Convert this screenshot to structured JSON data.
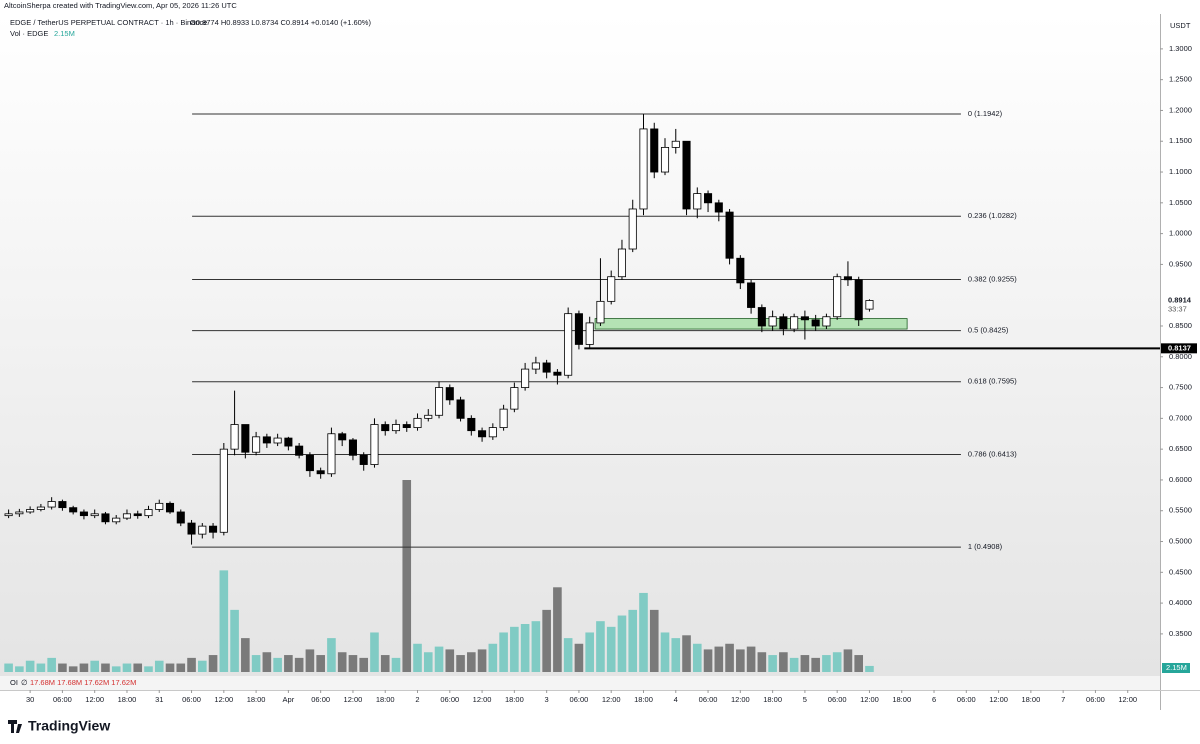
{
  "header": {
    "watermark": "AltcoinSherpa created with TradingView.com, Apr 05, 2026 11:26 UTC",
    "symbol": "EDGE / TetherUS PERPETUAL CONTRACT · 1h · Binance",
    "ohlc": "O0.8774 H0.8933 L0.8734 C0.8914 +0.0140 (+1.60%)",
    "volume_title": "Vol · EDGE",
    "volume_label": "2.15M"
  },
  "oi_row": {
    "title": "OI",
    "symbol": "∅",
    "values": "17.68M 17.68M 17.62M 17.62M"
  },
  "footer": {
    "logo": "TradingView"
  },
  "chart_data": {
    "type": "candlestick",
    "currency": "USDT",
    "x": [
      -4,
      -2,
      0,
      2,
      4,
      6,
      8,
      10,
      12,
      14,
      16,
      18,
      20,
      22,
      24,
      26,
      28,
      30,
      32,
      34,
      36,
      38,
      40,
      42,
      44,
      46,
      48,
      50,
      52,
      54,
      56,
      58,
      60,
      62,
      64,
      66,
      68,
      70,
      72,
      74,
      76,
      78,
      80,
      82,
      84,
      86,
      88,
      90,
      92,
      94,
      96,
      98,
      100,
      102,
      104,
      106,
      108,
      110,
      112,
      114,
      116,
      118,
      120,
      122,
      124,
      126,
      128,
      130,
      132,
      134,
      136,
      138,
      140,
      142,
      144,
      146,
      148,
      150,
      152,
      154,
      156
    ],
    "open": [
      0.542,
      0.545,
      0.548,
      0.552,
      0.556,
      0.565,
      0.555,
      0.548,
      0.542,
      0.545,
      0.532,
      0.538,
      0.545,
      0.542,
      0.552,
      0.562,
      0.548,
      0.53,
      0.512,
      0.525,
      0.515,
      0.65,
      0.69,
      0.645,
      0.67,
      0.66,
      0.668,
      0.655,
      0.64,
      0.615,
      0.61,
      0.675,
      0.665,
      0.64,
      0.625,
      0.69,
      0.68,
      0.69,
      0.685,
      0.7,
      0.705,
      0.75,
      0.73,
      0.7,
      0.68,
      0.67,
      0.685,
      0.715,
      0.75,
      0.78,
      0.79,
      0.775,
      0.77,
      0.87,
      0.82,
      0.855,
      0.89,
      0.93,
      0.975,
      1.04,
      1.17,
      1.1,
      1.14,
      1.15,
      1.04,
      1.065,
      1.05,
      1.035,
      0.96,
      0.92,
      0.88,
      0.85,
      0.865,
      0.845,
      0.865,
      0.86,
      0.85,
      0.865,
      0.93,
      0.925,
      0.8774
    ],
    "high": [
      0.552,
      0.553,
      0.557,
      0.561,
      0.572,
      0.568,
      0.558,
      0.552,
      0.552,
      0.548,
      0.543,
      0.552,
      0.55,
      0.558,
      0.568,
      0.565,
      0.552,
      0.535,
      0.53,
      0.53,
      0.66,
      0.745,
      0.69,
      0.678,
      0.675,
      0.675,
      0.67,
      0.66,
      0.645,
      0.62,
      0.685,
      0.678,
      0.668,
      0.645,
      0.7,
      0.695,
      0.698,
      0.695,
      0.708,
      0.715,
      0.76,
      0.755,
      0.735,
      0.705,
      0.685,
      0.692,
      0.722,
      0.758,
      0.79,
      0.8,
      0.795,
      0.78,
      0.88,
      0.875,
      0.865,
      0.96,
      0.94,
      0.99,
      1.055,
      1.194,
      1.18,
      1.155,
      1.17,
      1.15,
      1.075,
      1.07,
      1.055,
      1.04,
      0.965,
      0.925,
      0.885,
      0.875,
      0.87,
      0.87,
      0.875,
      0.868,
      0.87,
      0.935,
      0.955,
      0.93,
      0.8933
    ],
    "low": [
      0.538,
      0.54,
      0.545,
      0.549,
      0.552,
      0.55,
      0.544,
      0.536,
      0.538,
      0.528,
      0.528,
      0.535,
      0.537,
      0.538,
      0.548,
      0.545,
      0.525,
      0.495,
      0.505,
      0.505,
      0.51,
      0.64,
      0.635,
      0.64,
      0.652,
      0.655,
      0.648,
      0.635,
      0.605,
      0.602,
      0.605,
      0.655,
      0.632,
      0.615,
      0.62,
      0.672,
      0.675,
      0.678,
      0.68,
      0.695,
      0.7,
      0.722,
      0.695,
      0.672,
      0.662,
      0.665,
      0.68,
      0.71,
      0.745,
      0.772,
      0.765,
      0.755,
      0.765,
      0.812,
      0.815,
      0.85,
      0.885,
      0.925,
      0.97,
      1.03,
      1.09,
      1.095,
      1.13,
      1.03,
      1.025,
      1.035,
      1.02,
      0.95,
      0.91,
      0.87,
      0.84,
      0.842,
      0.835,
      0.84,
      0.828,
      0.842,
      0.845,
      0.86,
      0.915,
      0.85,
      0.8734
    ],
    "close": [
      0.545,
      0.548,
      0.552,
      0.556,
      0.565,
      0.555,
      0.548,
      0.542,
      0.545,
      0.532,
      0.538,
      0.545,
      0.542,
      0.552,
      0.562,
      0.548,
      0.53,
      0.512,
      0.525,
      0.515,
      0.65,
      0.69,
      0.645,
      0.67,
      0.66,
      0.668,
      0.655,
      0.64,
      0.615,
      0.61,
      0.675,
      0.665,
      0.64,
      0.625,
      0.69,
      0.68,
      0.69,
      0.685,
      0.7,
      0.705,
      0.75,
      0.73,
      0.7,
      0.68,
      0.67,
      0.685,
      0.715,
      0.75,
      0.78,
      0.79,
      0.775,
      0.77,
      0.87,
      0.82,
      0.855,
      0.89,
      0.93,
      0.975,
      1.04,
      1.17,
      1.1,
      1.14,
      1.15,
      1.04,
      1.065,
      1.05,
      1.035,
      0.96,
      0.92,
      0.88,
      0.85,
      0.865,
      0.845,
      0.865,
      0.86,
      0.85,
      0.865,
      0.93,
      0.925,
      0.86,
      0.8914
    ],
    "volume": [
      3,
      2,
      4,
      3,
      5,
      3,
      2,
      3,
      4,
      3,
      2,
      3,
      3,
      2,
      4,
      3,
      3,
      5,
      4,
      6,
      36,
      22,
      12,
      6,
      7,
      5,
      6,
      5,
      8,
      6,
      12,
      7,
      6,
      5,
      14,
      6,
      5,
      68,
      10,
      7,
      9,
      8,
      6,
      7,
      8,
      10,
      14,
      16,
      17,
      18,
      22,
      30,
      12,
      10,
      14,
      18,
      16,
      20,
      22,
      28,
      22,
      14,
      12,
      13,
      10,
      8,
      9,
      10,
      8,
      9,
      7,
      6,
      7,
      5,
      6,
      5,
      6,
      7,
      8,
      6,
      2.15
    ],
    "up_color": "#ffffff",
    "down_color": "#000000",
    "volume_up_color": "#80cbc4",
    "volume_down_color": "#7a7a7a",
    "xlim": [
      -5.6,
      210
    ],
    "ylim": [
      0.28,
      1.355
    ],
    "xticks": [
      {
        "value": 0,
        "label": "30"
      },
      {
        "value": 6,
        "label": "06:00"
      },
      {
        "value": 12,
        "label": "12:00"
      },
      {
        "value": 18,
        "label": "18:00"
      },
      {
        "value": 24,
        "label": "31"
      },
      {
        "value": 30,
        "label": "06:00"
      },
      {
        "value": 36,
        "label": "12:00"
      },
      {
        "value": 42,
        "label": "18:00"
      },
      {
        "value": 48,
        "label": "Apr"
      },
      {
        "value": 54,
        "label": "06:00"
      },
      {
        "value": 60,
        "label": "12:00"
      },
      {
        "value": 66,
        "label": "18:00"
      },
      {
        "value": 72,
        "label": "2"
      },
      {
        "value": 78,
        "label": "06:00"
      },
      {
        "value": 84,
        "label": "12:00"
      },
      {
        "value": 90,
        "label": "18:00"
      },
      {
        "value": 96,
        "label": "3"
      },
      {
        "value": 102,
        "label": "06:00"
      },
      {
        "value": 108,
        "label": "12:00"
      },
      {
        "value": 114,
        "label": "18:00"
      },
      {
        "value": 120,
        "label": "4"
      },
      {
        "value": 126,
        "label": "06:00"
      },
      {
        "value": 132,
        "label": "12:00"
      },
      {
        "value": 138,
        "label": "18:00"
      },
      {
        "value": 144,
        "label": "5"
      },
      {
        "value": 150,
        "label": "06:00"
      },
      {
        "value": 156,
        "label": "12:00"
      },
      {
        "value": 162,
        "label": "18:00"
      },
      {
        "value": 168,
        "label": "6"
      },
      {
        "value": 174,
        "label": "06:00"
      },
      {
        "value": 180,
        "label": "12:00"
      },
      {
        "value": 186,
        "label": "18:00"
      },
      {
        "value": 192,
        "label": "7"
      },
      {
        "value": 198,
        "label": "06:00"
      },
      {
        "value": 204,
        "label": "12:00"
      }
    ],
    "yticks": [
      {
        "value": 1.3,
        "label": "1.3000"
      },
      {
        "value": 1.25,
        "label": "1.2500"
      },
      {
        "value": 1.2,
        "label": "1.2000"
      },
      {
        "value": 1.15,
        "label": "1.1500"
      },
      {
        "value": 1.1,
        "label": "1.1000"
      },
      {
        "value": 1.05,
        "label": "1.0500"
      },
      {
        "value": 1.0,
        "label": "1.0000"
      },
      {
        "value": 0.95,
        "label": "0.9500"
      },
      {
        "value": 0.85,
        "label": "0.8500"
      },
      {
        "value": 0.8,
        "label": "0.8000"
      },
      {
        "value": 0.75,
        "label": "0.7500"
      },
      {
        "value": 0.7,
        "label": "0.7000"
      },
      {
        "value": 0.65,
        "label": "0.6500"
      },
      {
        "value": 0.6,
        "label": "0.6000"
      },
      {
        "value": 0.55,
        "label": "0.5500"
      },
      {
        "value": 0.5,
        "label": "0.5000"
      },
      {
        "value": 0.45,
        "label": "0.4500"
      },
      {
        "value": 0.4,
        "label": "0.4000"
      },
      {
        "value": 0.35,
        "label": "0.3500"
      }
    ],
    "fib_levels": [
      {
        "value": 1.1942,
        "label": "0 (1.1942)"
      },
      {
        "value": 1.0282,
        "label": "0.236 (1.0282)"
      },
      {
        "value": 0.9255,
        "label": "0.382 (0.9255)"
      },
      {
        "value": 0.8425,
        "label": "0.5 (0.8425)"
      },
      {
        "value": 0.7595,
        "label": "0.618 (0.7595)"
      },
      {
        "value": 0.6413,
        "label": "0.786 (0.6413)"
      },
      {
        "value": 0.4908,
        "label": "1 (0.4908)"
      }
    ],
    "fib_x": [
      30.1,
      173
    ],
    "zone": {
      "low": 0.845,
      "high": 0.862,
      "x": [
        105,
        163
      ]
    },
    "hline": {
      "value": 0.8137,
      "label": "0.8137",
      "x0": 103
    },
    "last_price": {
      "value": 0.8914,
      "label": "0.8914",
      "countdown": "33:37"
    }
  }
}
